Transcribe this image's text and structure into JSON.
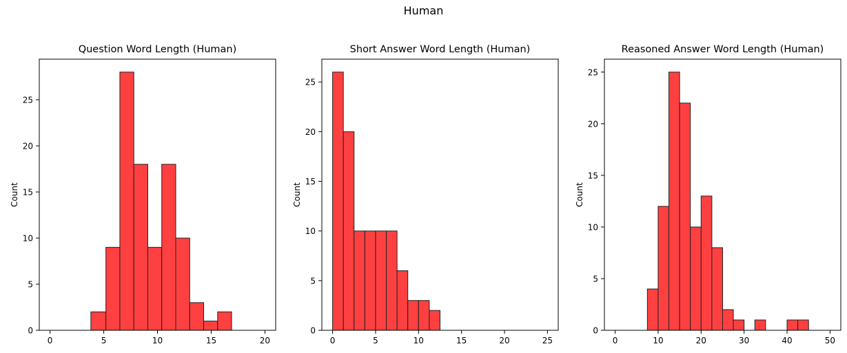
{
  "figure": {
    "suptitle": "Human"
  },
  "colors": {
    "bar_fill": "#ff4040",
    "bar_edge": "#222222",
    "axis": "#000000"
  },
  "chart_data": [
    {
      "type": "bar",
      "title": "Question Word Length (Human)",
      "xlabel": "",
      "ylabel": "Count",
      "xlim": [
        -1,
        21
      ],
      "ylim": [
        0,
        29.4
      ],
      "xticks": [
        0,
        5,
        10,
        15,
        20
      ],
      "yticks": [
        0,
        5,
        10,
        15,
        20,
        25
      ],
      "bins": [
        {
          "x0": 3.8,
          "x1": 5.2,
          "value": 2
        },
        {
          "x0": 5.2,
          "x1": 6.5,
          "value": 9
        },
        {
          "x0": 6.5,
          "x1": 7.8,
          "value": 28
        },
        {
          "x0": 7.8,
          "x1": 9.1,
          "value": 18
        },
        {
          "x0": 9.1,
          "x1": 10.4,
          "value": 9
        },
        {
          "x0": 10.4,
          "x1": 11.7,
          "value": 18
        },
        {
          "x0": 11.7,
          "x1": 13.0,
          "value": 10
        },
        {
          "x0": 13.0,
          "x1": 14.3,
          "value": 3
        },
        {
          "x0": 14.3,
          "x1": 15.6,
          "value": 1
        },
        {
          "x0": 15.6,
          "x1": 16.9,
          "value": 2
        }
      ]
    },
    {
      "type": "bar",
      "title": "Short Answer Word Length (Human)",
      "xlabel": "",
      "ylabel": "Count",
      "xlim": [
        -1.25,
        26.25
      ],
      "ylim": [
        0,
        27.3
      ],
      "xticks": [
        0,
        5,
        10,
        15,
        20,
        25
      ],
      "yticks": [
        0,
        5,
        10,
        15,
        20,
        25
      ],
      "bins": [
        {
          "x0": 0.0,
          "x1": 1.25,
          "value": 26
        },
        {
          "x0": 1.25,
          "x1": 2.5,
          "value": 20
        },
        {
          "x0": 2.5,
          "x1": 3.75,
          "value": 10
        },
        {
          "x0": 3.75,
          "x1": 5.0,
          "value": 10
        },
        {
          "x0": 5.0,
          "x1": 6.25,
          "value": 10
        },
        {
          "x0": 6.25,
          "x1": 7.5,
          "value": 10
        },
        {
          "x0": 7.5,
          "x1": 8.75,
          "value": 6
        },
        {
          "x0": 8.75,
          "x1": 10.0,
          "value": 3
        },
        {
          "x0": 10.0,
          "x1": 11.25,
          "value": 3
        },
        {
          "x0": 11.25,
          "x1": 12.5,
          "value": 2
        }
      ]
    },
    {
      "type": "bar",
      "title": "Reasoned Answer Word Length (Human)",
      "xlabel": "",
      "ylabel": "Count",
      "xlim": [
        -2.5,
        52.5
      ],
      "ylim": [
        0,
        26.25
      ],
      "xticks": [
        0,
        10,
        20,
        30,
        40,
        50
      ],
      "yticks": [
        0,
        5,
        10,
        15,
        20,
        25
      ],
      "bins": [
        {
          "x0": 7.5,
          "x1": 10.0,
          "value": 4
        },
        {
          "x0": 10.0,
          "x1": 12.5,
          "value": 12
        },
        {
          "x0": 12.5,
          "x1": 15.0,
          "value": 25
        },
        {
          "x0": 15.0,
          "x1": 17.5,
          "value": 22
        },
        {
          "x0": 17.5,
          "x1": 20.0,
          "value": 10
        },
        {
          "x0": 20.0,
          "x1": 22.5,
          "value": 13
        },
        {
          "x0": 22.5,
          "x1": 25.0,
          "value": 8
        },
        {
          "x0": 25.0,
          "x1": 27.5,
          "value": 2
        },
        {
          "x0": 27.5,
          "x1": 30.0,
          "value": 1
        },
        {
          "x0": 32.5,
          "x1": 35.0,
          "value": 1
        },
        {
          "x0": 40.0,
          "x1": 42.5,
          "value": 1
        },
        {
          "x0": 42.5,
          "x1": 45.0,
          "value": 1
        }
      ]
    }
  ]
}
